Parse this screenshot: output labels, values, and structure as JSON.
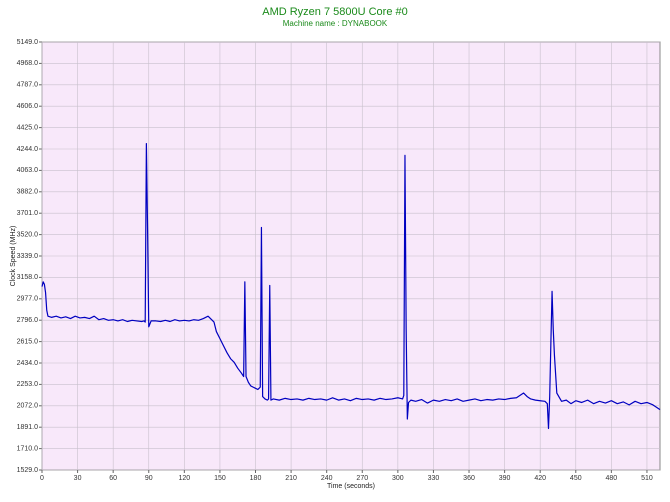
{
  "chart_data": {
    "type": "line",
    "title": "AMD Ryzen 7 5800U Core #0",
    "subtitle": "Machine name : DYNABOOK",
    "xlabel": "Time (seconds)",
    "ylabel": "Clock Speed (MHz)",
    "color": "#0000c0",
    "grid": true,
    "xlim": [
      0,
      521
    ],
    "xticks": [
      0,
      30,
      60,
      90,
      120,
      150,
      180,
      210,
      240,
      270,
      300,
      330,
      360,
      390,
      420,
      450,
      480,
      510
    ],
    "ylim": [
      1529,
      5149
    ],
    "yticks": [
      {
        "value": 1529,
        "label": "1529.0"
      },
      {
        "value": 1710,
        "label": "1710.0"
      },
      {
        "value": 1891,
        "label": "1891.0"
      },
      {
        "value": 2072,
        "label": "2072.0"
      },
      {
        "value": 2253,
        "label": "2253.0"
      },
      {
        "value": 2434,
        "label": "2434.0"
      },
      {
        "value": 2615,
        "label": "2615.0"
      },
      {
        "value": 2796,
        "label": "2796.0"
      },
      {
        "value": 2977,
        "label": "2977.0"
      },
      {
        "value": 3158,
        "label": "3158.0"
      },
      {
        "value": 3339,
        "label": "3339.0"
      },
      {
        "value": 3520,
        "label": "3520.0"
      },
      {
        "value": 3701,
        "label": "3701.0"
      },
      {
        "value": 3882,
        "label": "3882.0"
      },
      {
        "value": 4063,
        "label": "4063.0"
      },
      {
        "value": 4244,
        "label": "4244.0"
      },
      {
        "value": 4425,
        "label": "4425.0"
      },
      {
        "value": 4606,
        "label": "4606.0"
      },
      {
        "value": 4787,
        "label": "4787.0"
      },
      {
        "value": 4968,
        "label": "4968.0"
      },
      {
        "value": 5149,
        "label": "5149.0"
      }
    ],
    "x": [
      0,
      1,
      2,
      3,
      4,
      5,
      8,
      12,
      16,
      20,
      24,
      28,
      32,
      36,
      40,
      44,
      48,
      52,
      56,
      60,
      64,
      68,
      72,
      76,
      80,
      84,
      86,
      87,
      88,
      89,
      90,
      92,
      96,
      100,
      104,
      108,
      112,
      116,
      120,
      124,
      128,
      132,
      136,
      140,
      143,
      145,
      147,
      150,
      153,
      156,
      159,
      162,
      165,
      168,
      170,
      171,
      172,
      174,
      176,
      178,
      180,
      182,
      184,
      185,
      186,
      188,
      190,
      191,
      192,
      193,
      195,
      200,
      205,
      210,
      215,
      220,
      225,
      230,
      235,
      240,
      245,
      250,
      255,
      260,
      265,
      270,
      275,
      280,
      285,
      290,
      295,
      300,
      304,
      305,
      306,
      307,
      308,
      309,
      311,
      315,
      320,
      325,
      330,
      335,
      340,
      345,
      350,
      355,
      360,
      365,
      370,
      375,
      380,
      385,
      390,
      395,
      400,
      403,
      406,
      409,
      412,
      416,
      420,
      424,
      426,
      427,
      428,
      429,
      430,
      431,
      432,
      434,
      438,
      442,
      446,
      450,
      455,
      460,
      465,
      470,
      475,
      480,
      485,
      490,
      495,
      500,
      505,
      510,
      515,
      518,
      521
    ],
    "values": [
      3080,
      3120,
      3100,
      3030,
      2880,
      2830,
      2820,
      2830,
      2815,
      2825,
      2810,
      2830,
      2815,
      2820,
      2810,
      2830,
      2800,
      2810,
      2795,
      2800,
      2790,
      2800,
      2785,
      2795,
      2790,
      2785,
      2790,
      2780,
      4290,
      3570,
      2740,
      2790,
      2790,
      2785,
      2795,
      2785,
      2800,
      2790,
      2795,
      2790,
      2800,
      2795,
      2810,
      2830,
      2800,
      2780,
      2700,
      2640,
      2580,
      2520,
      2470,
      2440,
      2390,
      2350,
      2320,
      3120,
      2320,
      2270,
      2240,
      2230,
      2220,
      2210,
      2230,
      3580,
      2150,
      2130,
      2120,
      2130,
      3090,
      2120,
      2130,
      2120,
      2135,
      2125,
      2130,
      2120,
      2135,
      2125,
      2130,
      2120,
      2140,
      2120,
      2130,
      2115,
      2135,
      2125,
      2130,
      2120,
      2135,
      2125,
      2130,
      2140,
      2130,
      2160,
      4190,
      2720,
      1960,
      2100,
      2120,
      2110,
      2125,
      2095,
      2120,
      2110,
      2125,
      2115,
      2130,
      2110,
      2120,
      2130,
      2115,
      2125,
      2120,
      2130,
      2125,
      2135,
      2140,
      2160,
      2180,
      2150,
      2130,
      2120,
      2115,
      2110,
      2090,
      1880,
      2150,
      2600,
      3040,
      2720,
      2500,
      2180,
      2110,
      2120,
      2090,
      2115,
      2100,
      2120,
      2090,
      2110,
      2095,
      2115,
      2090,
      2105,
      2080,
      2110,
      2090,
      2100,
      2080,
      2060,
      2040
    ]
  }
}
